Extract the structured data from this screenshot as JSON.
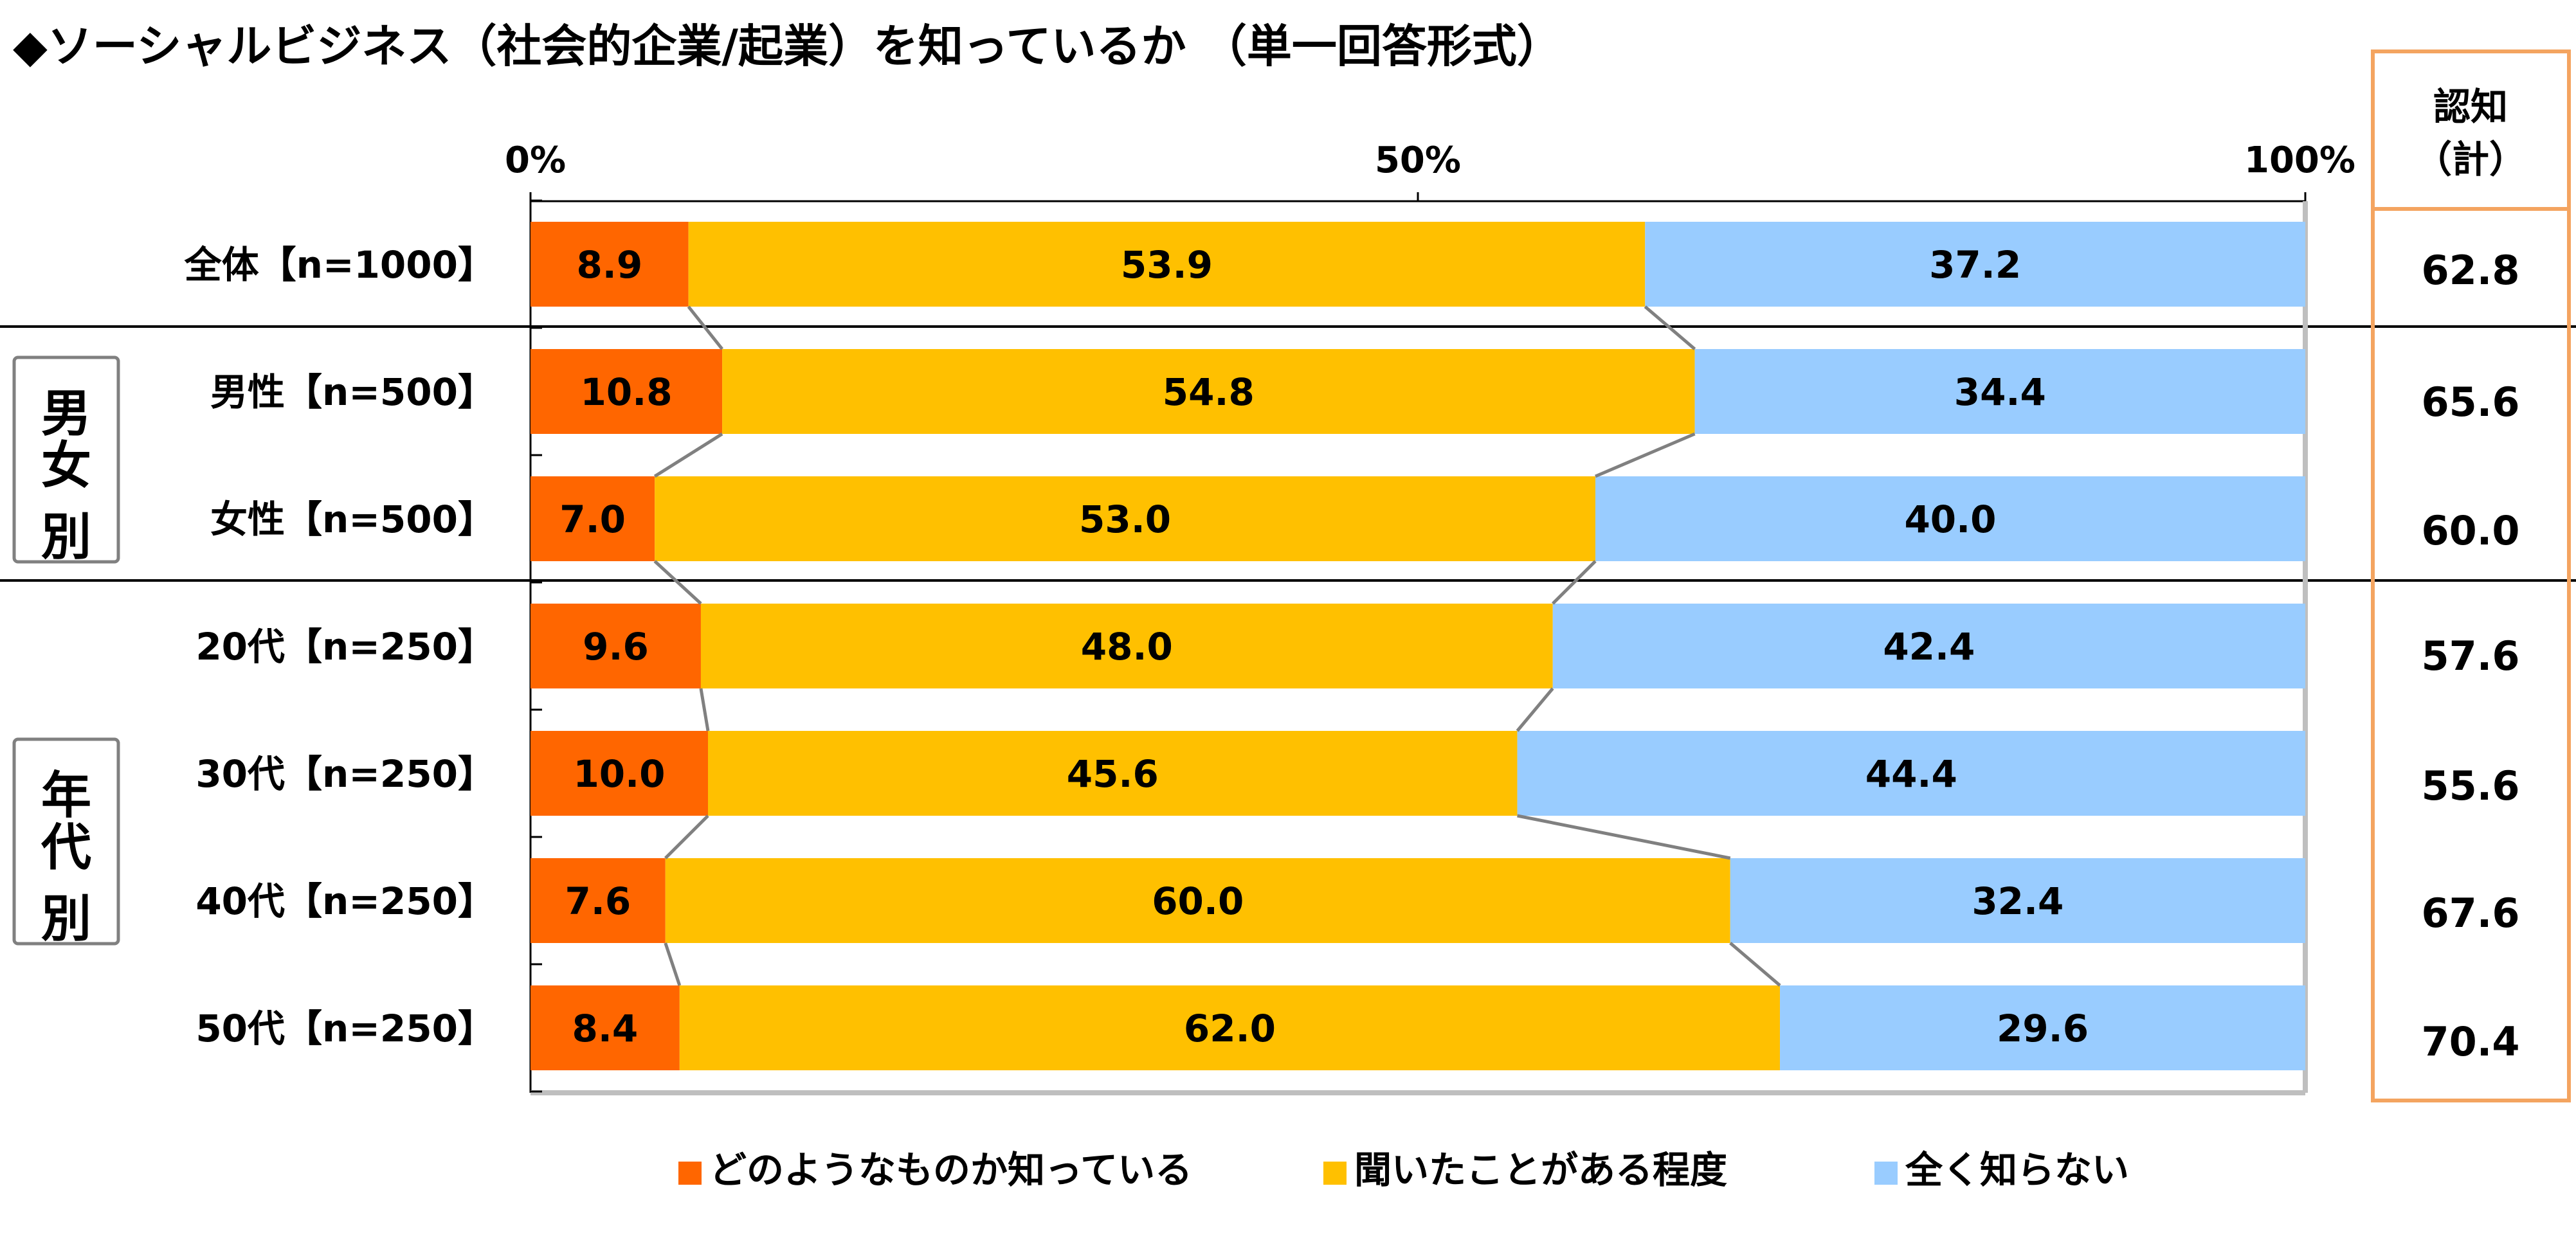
{
  "title": "◆ソーシャルビジネス（社会的企業/起業）を知っているか （単一回答形式）",
  "colors": {
    "know_well": "#FF6600",
    "heard": "#FFC000",
    "not_know": "#99CCFF",
    "total_box": "#F4A460",
    "connector": "#808080",
    "group_box": "#808080"
  },
  "groups": [
    {
      "label": "男女別"
    },
    {
      "label": "年代別"
    }
  ],
  "total_header": "認知（計）",
  "chart_data": {
    "type": "bar",
    "stacked": "100%",
    "orientation": "horizontal",
    "title": "◆ソーシャルビジネス（社会的企業/起業）を知っているか （単一回答形式）",
    "xlim": [
      0,
      100
    ],
    "x_ticks": [
      "0%",
      "50%",
      "100%"
    ],
    "categories": [
      "全体【n=1000】",
      "男性【n=500】",
      "女性【n=500】",
      "20代【n=250】",
      "30代【n=250】",
      "40代【n=250】",
      "50代【n=250】"
    ],
    "series": [
      {
        "name": "どのようなものか知っている",
        "values": [
          8.9,
          10.8,
          7.0,
          9.6,
          10.0,
          7.6,
          8.4
        ],
        "labels": [
          "8.9",
          "10.8",
          "7.0",
          "9.6",
          "10.0",
          "7.6",
          "8.4"
        ]
      },
      {
        "name": "聞いたことがある程度",
        "values": [
          53.9,
          54.8,
          53.0,
          48.0,
          45.6,
          60.0,
          62.0
        ],
        "labels": [
          "53.9",
          "54.8",
          "53.0",
          "48.0",
          "45.6",
          "60.0",
          "62.0"
        ]
      },
      {
        "name": "全く知らない",
        "values": [
          37.2,
          34.4,
          40.0,
          42.4,
          44.4,
          32.4,
          29.6
        ],
        "labels": [
          "37.2",
          "34.4",
          "40.0",
          "42.4",
          "44.4",
          "32.4",
          "29.6"
        ]
      }
    ],
    "totals": {
      "header": "認知（計）",
      "values": [
        62.8,
        65.6,
        60.0,
        57.6,
        55.6,
        67.6,
        70.4
      ],
      "labels": [
        "62.8",
        "65.6",
        "60.0",
        "57.6",
        "55.6",
        "67.6",
        "70.4"
      ]
    },
    "legend": "bottom",
    "grid": false
  }
}
